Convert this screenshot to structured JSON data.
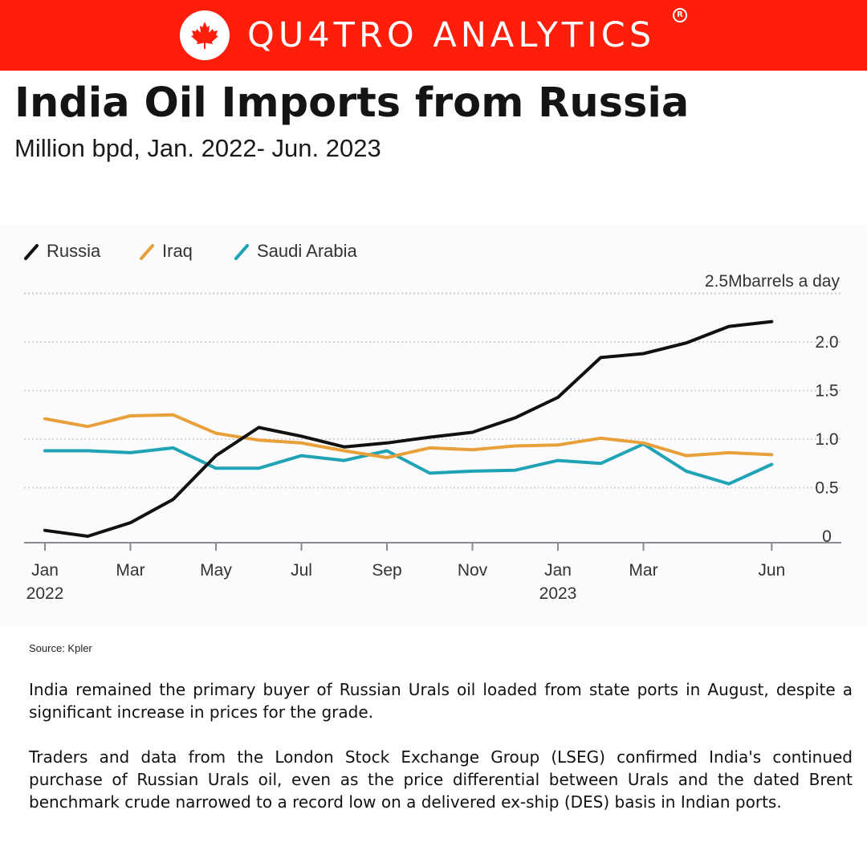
{
  "brand": {
    "name": "QU4TRO ANALYTICS",
    "registered_mark": "R"
  },
  "title": "India Oil Imports from Russia",
  "subtitle": "Million bpd, Jan. 2022- Jun. 2023",
  "source": "Source: Kpler",
  "paragraphs": [
    "India remained the primary buyer of Russian Urals oil loaded from state ports in August, despite a significant increase in prices for the grade.",
    "Traders and data from the London Stock Exchange Group (LSEG) confirmed India's continued purchase of Russian Urals oil, even as the price differential between Urals and the dated Brent benchmark crude narrowed to a record low on a delivered ex-ship (DES) basis in Indian ports."
  ],
  "colors": {
    "brand_red": "#ff1e0a",
    "russia": "#111111",
    "iraq": "#e8a03a",
    "saudi_arabia": "#1fa3b5"
  },
  "chart_data": {
    "type": "line",
    "unit_label": "2.5Mbarrels a day",
    "x": [
      "Jan 2022",
      "Feb 2022",
      "Mar 2022",
      "Apr 2022",
      "May 2022",
      "Jun 2022",
      "Jul 2022",
      "Aug 2022",
      "Sep 2022",
      "Oct 2022",
      "Nov 2022",
      "Dec 2022",
      "Jan 2023",
      "Feb 2023",
      "Mar 2023",
      "Apr 2023",
      "May 2023",
      "Jun 2023"
    ],
    "x_tick_labels": [
      {
        "index": 0,
        "label": "Jan",
        "sub": "2022"
      },
      {
        "index": 2,
        "label": "Mar",
        "sub": ""
      },
      {
        "index": 4,
        "label": "May",
        "sub": ""
      },
      {
        "index": 6,
        "label": "Jul",
        "sub": ""
      },
      {
        "index": 8,
        "label": "Sep",
        "sub": ""
      },
      {
        "index": 10,
        "label": "Nov",
        "sub": ""
      },
      {
        "index": 12,
        "label": "Jan",
        "sub": "2023"
      },
      {
        "index": 14,
        "label": "Mar",
        "sub": ""
      },
      {
        "index": 17,
        "label": "Jun",
        "sub": ""
      }
    ],
    "y_ticks": [
      {
        "value": 2.0,
        "label": "2.0"
      },
      {
        "value": 1.5,
        "label": "1.5"
      },
      {
        "value": 1.0,
        "label": "1.0"
      },
      {
        "value": 0.5,
        "label": "0.5"
      },
      {
        "value": 0.0,
        "label": "0"
      }
    ],
    "ylim": [
      0,
      2.5
    ],
    "legend_position": "top-left",
    "series": [
      {
        "name": "Russia",
        "color": "#111111",
        "values": [
          0.06,
          0.0,
          0.14,
          0.38,
          0.83,
          1.12,
          1.03,
          0.92,
          0.96,
          1.02,
          1.07,
          1.22,
          1.43,
          1.84,
          1.88,
          1.99,
          2.16,
          2.21
        ]
      },
      {
        "name": "Iraq",
        "color": "#e8a03a",
        "values": [
          1.21,
          1.13,
          1.24,
          1.25,
          1.06,
          0.99,
          0.96,
          0.88,
          0.81,
          0.91,
          0.89,
          0.93,
          0.94,
          1.01,
          0.96,
          0.83,
          0.86,
          0.84
        ]
      },
      {
        "name": "Saudi Arabia",
        "color": "#1fa3b5",
        "values": [
          0.88,
          0.88,
          0.86,
          0.91,
          0.7,
          0.7,
          0.83,
          0.78,
          0.88,
          0.65,
          0.67,
          0.68,
          0.78,
          0.75,
          0.95,
          0.67,
          0.54,
          0.74
        ]
      }
    ]
  }
}
